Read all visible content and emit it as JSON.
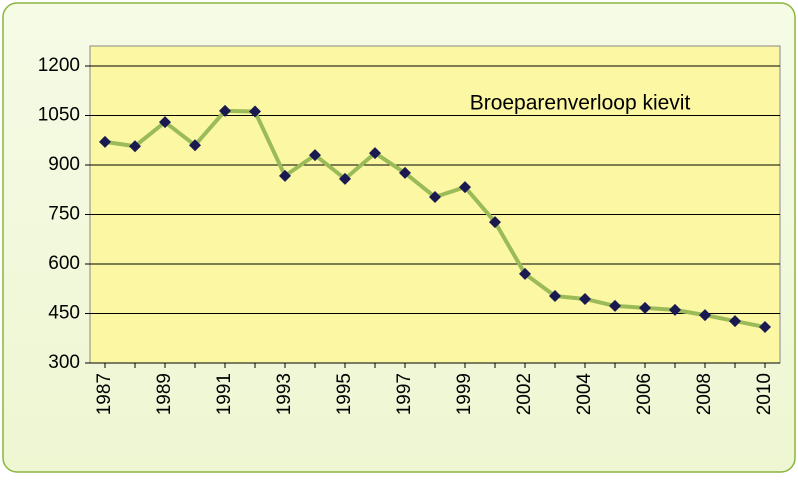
{
  "chart_data": {
    "type": "line",
    "annotation": "Broeparenverloop kievit",
    "categories": [
      "1987",
      null,
      "1989",
      null,
      "1991",
      null,
      "1993",
      null,
      "1995",
      null,
      "1997",
      null,
      "1999",
      null,
      "2002",
      null,
      "2004",
      null,
      "2006",
      null,
      "2008",
      null,
      "2010"
    ],
    "series": [
      {
        "color": "#9bbb59",
        "values": [
          970,
          957,
          1030,
          960,
          1064,
          1062,
          867,
          930,
          858,
          936,
          876,
          803,
          833,
          727,
          570,
          503,
          494,
          473,
          467,
          461,
          445,
          427,
          409
        ]
      }
    ],
    "ylim": [
      300,
      1200
    ],
    "yticks": [
      300,
      450,
      600,
      750,
      900,
      1050,
      1200
    ],
    "grid": true
  }
}
